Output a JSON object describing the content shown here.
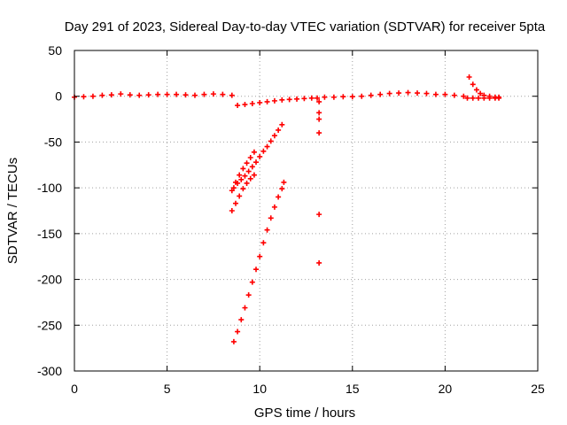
{
  "chart_data": {
    "type": "scatter",
    "title": "Day 291 of 2023, Sidereal Day-to-day VTEC variation (SDTVAR) for receiver 5pta",
    "xlabel": "GPS time / hours",
    "ylabel": "SDTVAR / TECUs",
    "xlim": [
      0,
      25
    ],
    "ylim": [
      -300,
      50
    ],
    "xticks": [
      0,
      5,
      10,
      15,
      20,
      25
    ],
    "yticks": [
      50,
      0,
      -50,
      -100,
      -150,
      -200,
      -250,
      -300
    ],
    "grid": true,
    "marker": "plus",
    "color": "#ff0000",
    "series": [
      {
        "name": "main-band-early",
        "x": [
          0.0,
          0.5,
          1.0,
          1.5,
          2.0,
          2.5,
          3.0,
          3.5,
          4.0,
          4.5,
          5.0,
          5.5,
          6.0,
          6.5,
          7.0,
          7.5,
          8.0,
          8.5
        ],
        "y": [
          -1,
          -0.5,
          0,
          1,
          1.5,
          2.5,
          1.5,
          1,
          1.5,
          2,
          2,
          2,
          1.5,
          1,
          2,
          2.5,
          2,
          1
        ]
      },
      {
        "name": "main-band-dip",
        "x": [
          8.8,
          9.2,
          9.6,
          10.0,
          10.4,
          10.8,
          11.2,
          11.6,
          12.0,
          12.4,
          12.8,
          13.1
        ],
        "y": [
          -10,
          -9,
          -8,
          -7,
          -6,
          -5,
          -4,
          -3.5,
          -3,
          -2.5,
          -2,
          -2
        ]
      },
      {
        "name": "main-band-late",
        "x": [
          13.5,
          14.0,
          14.5,
          15.0,
          15.5,
          16.0,
          16.5,
          17.0,
          17.5,
          18.0,
          18.5,
          19.0,
          19.5,
          20.0,
          20.5,
          21.0
        ],
        "y": [
          -1,
          -1,
          -0.5,
          -0.5,
          0,
          1,
          2,
          3,
          3.5,
          4,
          3.5,
          3,
          2,
          2,
          1,
          0
        ]
      },
      {
        "name": "tail-flat",
        "x": [
          21.2,
          21.5,
          21.8,
          22.1,
          22.4,
          22.7,
          22.9
        ],
        "y": [
          -2,
          -2,
          -2,
          -2,
          -2,
          -2,
          -2
        ]
      },
      {
        "name": "tail-curve",
        "x": [
          21.3,
          21.5,
          21.7,
          21.9,
          22.1,
          22.4,
          22.7,
          22.9
        ],
        "y": [
          21,
          13,
          7,
          3,
          1,
          0,
          -1,
          -1
        ]
      },
      {
        "name": "descent-upper",
        "x": [
          8.6,
          8.8,
          9.0,
          9.2,
          9.4,
          9.6,
          9.8,
          10.0,
          10.2,
          10.4,
          10.6,
          10.8,
          11.0,
          11.2
        ],
        "y": [
          -100,
          -95,
          -91,
          -87,
          -82,
          -77,
          -72,
          -66,
          -60,
          -55,
          -49,
          -43,
          -37,
          -31
        ]
      },
      {
        "name": "descent-short",
        "x": [
          8.5,
          8.7,
          8.9,
          9.1,
          9.3,
          9.5,
          9.7
        ],
        "y": [
          -103,
          -94,
          -86,
          -79,
          -73,
          -67,
          -61
        ]
      },
      {
        "name": "descent-mid",
        "x": [
          8.5,
          8.7,
          8.9,
          9.1,
          9.3,
          9.5,
          9.7
        ],
        "y": [
          -125,
          -117,
          -109,
          -101,
          -95,
          -90,
          -86
        ]
      },
      {
        "name": "descent-deep",
        "x": [
          8.6,
          8.8,
          9.0,
          9.2,
          9.4,
          9.6,
          9.8,
          10.0,
          10.2,
          10.4,
          10.6,
          10.8,
          11.0,
          11.2,
          11.3
        ],
        "y": [
          -268,
          -257,
          -244,
          -231,
          -217,
          -203,
          -189,
          -175,
          -160,
          -146,
          -133,
          -121,
          -110,
          -101,
          -94
        ]
      },
      {
        "name": "isolated",
        "x": [
          13.2,
          13.2,
          13.2,
          13.2,
          13.2,
          13.2
        ],
        "y": [
          -6,
          -18,
          -25,
          -40,
          -129,
          -182
        ]
      }
    ]
  }
}
